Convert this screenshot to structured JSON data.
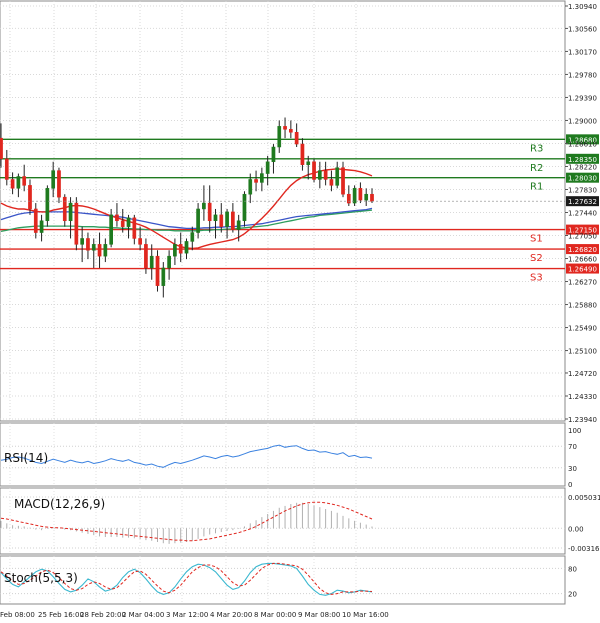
{
  "chart_data": {
    "type": "candlestick",
    "symbol_panel": {
      "y_ticks": [
        "1.30940",
        "1.30560",
        "1.30170",
        "1.29780",
        "1.29390",
        "1.29000",
        "1.28610",
        "1.28220",
        "1.27830",
        "1.27440",
        "1.27050",
        "1.26660",
        "1.26270",
        "1.25880",
        "1.25490",
        "1.25100",
        "1.24720",
        "1.24330",
        "1.23940"
      ],
      "y_tick_values": [
        1.3094,
        1.3056,
        1.3017,
        1.2978,
        1.2939,
        1.29,
        1.2861,
        1.2822,
        1.2783,
        1.2744,
        1.2705,
        1.2666,
        1.2627,
        1.2588,
        1.2549,
        1.251,
        1.2472,
        1.2433,
        1.2394
      ],
      "ylim": [
        1.2394,
        1.3094
      ],
      "current_price": "1.27632",
      "current_value": 1.27632,
      "levels": [
        {
          "name": "R3",
          "label": "1.28680",
          "value": 1.2868,
          "color": "#1f7a1f"
        },
        {
          "name": "R2",
          "label": "1.28350",
          "value": 1.2835,
          "color": "#1f7a1f"
        },
        {
          "name": "R1",
          "label": "1.28030",
          "value": 1.2803,
          "color": "#1f7a1f"
        },
        {
          "name": "S1",
          "label": "1.27150",
          "value": 1.2715,
          "color": "#e0271f"
        },
        {
          "name": "S2",
          "label": "1.26820",
          "value": 1.2682,
          "color": "#e0271f"
        },
        {
          "name": "S3",
          "label": "1.26490",
          "value": 1.2649,
          "color": "#e0271f"
        }
      ],
      "candles": [
        [
          1.287,
          1.2895,
          1.282,
          1.2835
        ],
        [
          1.2835,
          1.285,
          1.279,
          1.28
        ],
        [
          1.28,
          1.2812,
          1.2775,
          1.2785
        ],
        [
          1.2785,
          1.281,
          1.277,
          1.2805
        ],
        [
          1.2805,
          1.2825,
          1.278,
          1.279
        ],
        [
          1.279,
          1.28,
          1.274,
          1.275
        ],
        [
          1.275,
          1.276,
          1.27,
          1.271
        ],
        [
          1.271,
          1.274,
          1.2695,
          1.273
        ],
        [
          1.273,
          1.279,
          1.272,
          1.2785
        ],
        [
          1.2785,
          1.283,
          1.277,
          1.2815
        ],
        [
          1.2815,
          1.282,
          1.276,
          1.277
        ],
        [
          1.277,
          1.2775,
          1.272,
          1.273
        ],
        [
          1.273,
          1.277,
          1.27,
          1.276
        ],
        [
          1.276,
          1.277,
          1.268,
          1.269
        ],
        [
          1.269,
          1.272,
          1.266,
          1.27
        ],
        [
          1.27,
          1.271,
          1.2665,
          1.268
        ],
        [
          1.268,
          1.27,
          1.265,
          1.269
        ],
        [
          1.269,
          1.271,
          1.265,
          1.267
        ],
        [
          1.267,
          1.27,
          1.266,
          1.269
        ],
        [
          1.269,
          1.275,
          1.2685,
          1.274
        ],
        [
          1.274,
          1.276,
          1.272,
          1.273
        ],
        [
          1.273,
          1.275,
          1.271,
          1.272
        ],
        [
          1.272,
          1.274,
          1.27,
          1.2735
        ],
        [
          1.2735,
          1.274,
          1.269,
          1.27
        ],
        [
          1.27,
          1.272,
          1.268,
          1.269
        ],
        [
          1.269,
          1.27,
          1.264,
          1.265
        ],
        [
          1.265,
          1.269,
          1.263,
          1.267
        ],
        [
          1.267,
          1.268,
          1.261,
          1.262
        ],
        [
          1.262,
          1.266,
          1.26,
          1.265
        ],
        [
          1.265,
          1.268,
          1.263,
          1.267
        ],
        [
          1.267,
          1.27,
          1.2655,
          1.269
        ],
        [
          1.269,
          1.271,
          1.266,
          1.2675
        ],
        [
          1.2675,
          1.27,
          1.2665,
          1.2695
        ],
        [
          1.2695,
          1.272,
          1.268,
          1.271
        ],
        [
          1.271,
          1.276,
          1.27,
          1.275
        ],
        [
          1.275,
          1.279,
          1.273,
          1.276
        ],
        [
          1.276,
          1.279,
          1.271,
          1.273
        ],
        [
          1.273,
          1.275,
          1.27,
          1.274
        ],
        [
          1.274,
          1.276,
          1.271,
          1.272
        ],
        [
          1.272,
          1.275,
          1.27,
          1.2745
        ],
        [
          1.2745,
          1.276,
          1.271,
          1.2715
        ],
        [
          1.2715,
          1.274,
          1.2695,
          1.273
        ],
        [
          1.273,
          1.278,
          1.272,
          1.2775
        ],
        [
          1.2775,
          1.281,
          1.276,
          1.28
        ],
        [
          1.28,
          1.2815,
          1.278,
          1.2795
        ],
        [
          1.2795,
          1.282,
          1.278,
          1.281
        ],
        [
          1.281,
          1.284,
          1.279,
          1.283
        ],
        [
          1.283,
          1.286,
          1.281,
          1.2855
        ],
        [
          1.2855,
          1.29,
          1.2845,
          1.289
        ],
        [
          1.289,
          1.2905,
          1.287,
          1.2885
        ],
        [
          1.2885,
          1.29,
          1.287,
          1.288
        ],
        [
          1.288,
          1.2895,
          1.2855,
          1.286
        ],
        [
          1.286,
          1.287,
          1.2815,
          1.2825
        ],
        [
          1.2825,
          1.284,
          1.28,
          1.283
        ],
        [
          1.283,
          1.2835,
          1.2795,
          1.28
        ],
        [
          1.28,
          1.283,
          1.2785,
          1.2815
        ],
        [
          1.2815,
          1.283,
          1.279,
          1.28
        ],
        [
          1.28,
          1.2815,
          1.278,
          1.279
        ],
        [
          1.279,
          1.283,
          1.2785,
          1.282
        ],
        [
          1.282,
          1.283,
          1.277,
          1.2775
        ],
        [
          1.2775,
          1.279,
          1.2755,
          1.276
        ],
        [
          1.276,
          1.279,
          1.2755,
          1.2785
        ],
        [
          1.2785,
          1.2795,
          1.276,
          1.2765
        ],
        [
          1.2765,
          1.2785,
          1.2755,
          1.2775
        ],
        [
          1.2775,
          1.2785,
          1.276,
          1.2763
        ]
      ],
      "ma_red": [
        1.276,
        1.2755,
        1.2752,
        1.275,
        1.275,
        1.2748,
        1.2746,
        1.2745,
        1.2745,
        1.2748,
        1.275,
        1.2752,
        1.2755,
        1.2756,
        1.2755,
        1.2753,
        1.275,
        1.2746,
        1.2742,
        1.2738,
        1.2735,
        1.2732,
        1.2729,
        1.2726,
        1.2723,
        1.2719,
        1.2714,
        1.2708,
        1.2702,
        1.2696,
        1.269,
        1.2686,
        1.2684,
        1.2683,
        1.2684,
        1.2687,
        1.269,
        1.2692,
        1.2694,
        1.2696,
        1.2698,
        1.2702,
        1.2708,
        1.2716,
        1.2725,
        1.2734,
        1.2744,
        1.2755,
        1.2767,
        1.2779,
        1.279,
        1.2798,
        1.2804,
        1.2808,
        1.2811,
        1.2814,
        1.2816,
        1.2817,
        1.2818,
        1.2817,
        1.2816,
        1.2815,
        1.2813,
        1.281,
        1.2806
      ],
      "ma_blue": [
        1.2732,
        1.2735,
        1.2738,
        1.2741,
        1.2743,
        1.2744,
        1.2745,
        1.2745,
        1.2745,
        1.2745,
        1.2745,
        1.2745,
        1.2745,
        1.2744,
        1.2743,
        1.2742,
        1.2741,
        1.274,
        1.2739,
        1.2738,
        1.2737,
        1.2736,
        1.2734,
        1.2732,
        1.273,
        1.2728,
        1.2726,
        1.2724,
        1.2722,
        1.272,
        1.2719,
        1.2718,
        1.2717,
        1.2717,
        1.2717,
        1.2718,
        1.2718,
        1.2719,
        1.2719,
        1.272,
        1.272,
        1.2721,
        1.2722,
        1.2723,
        1.2724,
        1.2725,
        1.2727,
        1.2729,
        1.2731,
        1.2733,
        1.2735,
        1.2737,
        1.2738,
        1.2739,
        1.274,
        1.2741,
        1.2742,
        1.2743,
        1.2744,
        1.2745,
        1.2746,
        1.2747,
        1.2748,
        1.2749,
        1.2751
      ],
      "ma_green": [
        1.2712,
        1.2714,
        1.2716,
        1.2718,
        1.2719,
        1.272,
        1.2721,
        1.2721,
        1.2721,
        1.2721,
        1.2721,
        1.2721,
        1.2721,
        1.2721,
        1.272,
        1.272,
        1.272,
        1.2719,
        1.2719,
        1.2718,
        1.2718,
        1.2717,
        1.2717,
        1.2716,
        1.2716,
        1.2715,
        1.2715,
        1.2714,
        1.2714,
        1.2714,
        1.2713,
        1.2713,
        1.2713,
        1.2713,
        1.2713,
        1.2714,
        1.2714,
        1.2715,
        1.2715,
        1.2716,
        1.2716,
        1.2717,
        1.2718,
        1.2719,
        1.272,
        1.2721,
        1.2722,
        1.2724,
        1.2726,
        1.2728,
        1.273,
        1.2732,
        1.2734,
        1.2736,
        1.2737,
        1.2739,
        1.274,
        1.2741,
        1.2742,
        1.2743,
        1.2744,
        1.2745,
        1.2746,
        1.2747,
        1.2748
      ]
    },
    "rsi_panel": {
      "label": "RSI(14)",
      "y_ticks": [
        "100",
        "70",
        "30",
        "0"
      ],
      "y_tick_values": [
        100,
        70,
        30,
        0
      ],
      "ylim": [
        0,
        100
      ],
      "values": [
        44,
        46,
        49,
        50,
        48,
        44,
        40,
        38,
        42,
        46,
        43,
        40,
        44,
        41,
        39,
        42,
        38,
        40,
        43,
        47,
        44,
        42,
        45,
        40,
        38,
        35,
        37,
        33,
        31,
        36,
        40,
        38,
        41,
        44,
        48,
        52,
        50,
        47,
        51,
        53,
        50,
        52,
        56,
        60,
        62,
        64,
        66,
        70,
        72,
        68,
        70,
        71,
        66,
        62,
        63,
        59,
        60,
        57,
        55,
        58,
        51,
        53,
        49,
        50,
        48
      ]
    },
    "macd_panel": {
      "label": "MACD(12,26,9)",
      "y_ticks": [
        "0.005031",
        "0.00",
        "-0.003165"
      ],
      "y_tick_values": [
        0.005031,
        0.0,
        -0.003165
      ],
      "ylim": [
        -0.003165,
        0.005031
      ],
      "histogram": [
        0.0012,
        0.0008,
        0.0005,
        0.0004,
        0.0003,
        0.0001,
        -0.0002,
        -0.0003,
        -0.0001,
        0.0001,
        0.0,
        -0.0002,
        -0.0003,
        -0.0005,
        -0.0007,
        -0.0009,
        -0.0011,
        -0.0013,
        -0.0014,
        -0.0014,
        -0.0014,
        -0.0015,
        -0.0015,
        -0.0016,
        -0.0017,
        -0.0019,
        -0.002,
        -0.0022,
        -0.0024,
        -0.0025,
        -0.0024,
        -0.0023,
        -0.0022,
        -0.002,
        -0.0017,
        -0.0013,
        -0.001,
        -0.0008,
        -0.0006,
        -0.0004,
        -0.0003,
        -0.0001,
        0.0003,
        0.0008,
        0.0013,
        0.0018,
        0.0023,
        0.0028,
        0.0033,
        0.0036,
        0.0039,
        0.0041,
        0.0041,
        0.0039,
        0.0037,
        0.0034,
        0.0031,
        0.0028,
        0.0025,
        0.002,
        0.0016,
        0.0012,
        0.0009,
        0.0006,
        0.0003
      ],
      "signal": [
        0.0016,
        0.0015,
        0.0013,
        0.0011,
        0.0009,
        0.0007,
        0.0005,
        0.0003,
        0.0002,
        0.0001,
        0.0001,
        0.0,
        -0.0001,
        -0.0002,
        -0.0003,
        -0.0004,
        -0.0005,
        -0.0006,
        -0.0007,
        -0.0008,
        -0.0009,
        -0.001,
        -0.0011,
        -0.0012,
        -0.0013,
        -0.0014,
        -0.0015,
        -0.0016,
        -0.0017,
        -0.0018,
        -0.0019,
        -0.0019,
        -0.002,
        -0.002,
        -0.0019,
        -0.0018,
        -0.0017,
        -0.0015,
        -0.0013,
        -0.0011,
        -0.0009,
        -0.0007,
        -0.0004,
        -0.0001,
        0.0003,
        0.0008,
        0.0013,
        0.0018,
        0.0023,
        0.0028,
        0.0032,
        0.0036,
        0.0039,
        0.0041,
        0.0042,
        0.0042,
        0.0041,
        0.0039,
        0.0037,
        0.0034,
        0.0031,
        0.0027,
        0.0023,
        0.0019,
        0.0015
      ]
    },
    "stoch_panel": {
      "label": "Stoch(5,5,3)",
      "y_ticks": [
        "80",
        "20"
      ],
      "y_tick_values": [
        80,
        20
      ],
      "ylim": [
        0,
        100
      ],
      "k": [
        70,
        55,
        42,
        36,
        48,
        60,
        72,
        78,
        74,
        60,
        44,
        30,
        24,
        28,
        40,
        55,
        48,
        36,
        26,
        30,
        40,
        58,
        72,
        78,
        70,
        55,
        38,
        24,
        18,
        22,
        36,
        55,
        72,
        84,
        90,
        88,
        82,
        72,
        56,
        40,
        30,
        34,
        50,
        70,
        84,
        90,
        92,
        92,
        90,
        88,
        86,
        80,
        62,
        42,
        28,
        18,
        16,
        20,
        28,
        26,
        22,
        24,
        28,
        26,
        24
      ],
      "d": [
        72,
        62,
        50,
        42,
        44,
        52,
        62,
        72,
        76,
        70,
        58,
        44,
        32,
        28,
        32,
        42,
        48,
        44,
        36,
        30,
        34,
        46,
        60,
        72,
        74,
        66,
        52,
        38,
        26,
        22,
        28,
        40,
        56,
        72,
        82,
        88,
        88,
        84,
        74,
        60,
        46,
        38,
        40,
        52,
        66,
        80,
        88,
        92,
        92,
        90,
        88,
        86,
        78,
        64,
        48,
        32,
        22,
        18,
        20,
        24,
        24,
        24,
        26,
        26,
        25
      ]
    },
    "x_ticks": [
      "Feb 08:00",
      "25 Feb 16:00",
      "28 Feb 20:00",
      "2 Mar 04:00",
      "3 Mar 12:00",
      "4 Mar 20:00",
      "8 Mar 00:00",
      "9 Mar 08:00",
      "10 Mar 16:00"
    ],
    "colors": {
      "bull": "#1f7a1f",
      "bear": "#e0271f",
      "ma_red": "#e0271f",
      "ma_blue": "#3a55c8",
      "ma_green": "#2e9e5e",
      "rsi": "#3b82e0",
      "macd_hist": "#b0b0b0",
      "macd_signal": "#e0271f",
      "stoch_k": "#3bb8d0",
      "stoch_d": "#e0271f",
      "current_price_bg": "#1a1a1a"
    }
  }
}
